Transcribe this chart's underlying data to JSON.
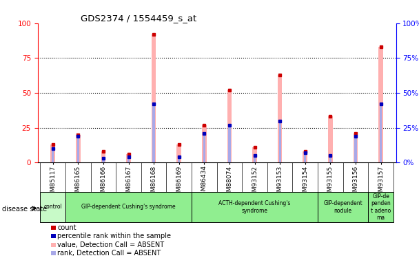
{
  "title": "GDS2374 / 1554459_s_at",
  "samples": [
    "GSM85117",
    "GSM86165",
    "GSM86166",
    "GSM86167",
    "GSM86168",
    "GSM86169",
    "GSM86434",
    "GSM88074",
    "GSM93152",
    "GSM93153",
    "GSM93154",
    "GSM93155",
    "GSM93156",
    "GSM93157"
  ],
  "pink_bars": [
    13,
    20,
    8,
    6,
    92,
    13,
    27,
    52,
    11,
    63,
    8,
    33,
    21,
    83
  ],
  "blue_bars": [
    10,
    19,
    3,
    4,
    42,
    4,
    21,
    27,
    5,
    30,
    7,
    5,
    19,
    42
  ],
  "disease_groups": [
    {
      "label": "control",
      "start": 0,
      "end": 1,
      "color": "#c8fac8"
    },
    {
      "label": "GIP-dependent Cushing's syndrome",
      "start": 1,
      "end": 6,
      "color": "#90ee90"
    },
    {
      "label": "ACTH-dependent Cushing's\nsyndrome",
      "start": 6,
      "end": 11,
      "color": "#90ee90"
    },
    {
      "label": "GIP-dependent\nnodule",
      "start": 11,
      "end": 13,
      "color": "#90ee90"
    },
    {
      "label": "GIP-de\npenden\nt adeno\nma",
      "start": 13,
      "end": 14,
      "color": "#90ee90"
    }
  ],
  "ylim": [
    0,
    100
  ],
  "yticks": [
    0,
    25,
    50,
    75,
    100
  ],
  "pink_color": "#ffb0b0",
  "blue_color": "#a8a8e8",
  "red_color": "#cc0000",
  "blue_dot_color": "#0000bb",
  "legend_items": [
    {
      "color": "#cc0000",
      "label": "count"
    },
    {
      "color": "#0000bb",
      "label": "percentile rank within the sample"
    },
    {
      "color": "#ffb0b0",
      "label": "value, Detection Call = ABSENT"
    },
    {
      "color": "#a8a8e8",
      "label": "rank, Detection Call = ABSENT"
    }
  ]
}
